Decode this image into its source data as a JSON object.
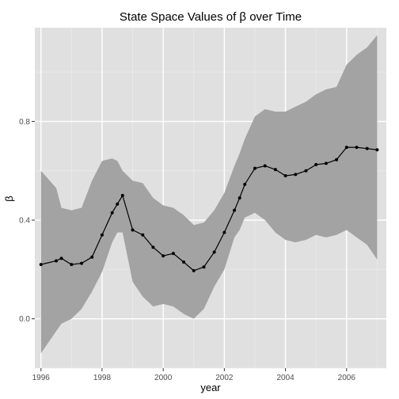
{
  "chart_data": {
    "type": "line",
    "title": "State Space Values of β over Time",
    "xlabel": "year",
    "ylabel": "β",
    "xlim": [
      1995.8,
      2007.3
    ],
    "ylim": [
      -0.2,
      1.18
    ],
    "x_ticks": [
      1996,
      1998,
      2000,
      2002,
      2004,
      2006
    ],
    "x_tick_labels": [
      "1996",
      "1998",
      "2000",
      "2002",
      "2004",
      "2006"
    ],
    "y_ticks": [
      0.0,
      0.4,
      0.8
    ],
    "y_tick_labels": [
      "0.0",
      "0.4",
      "0.8"
    ],
    "grid": true,
    "colors": {
      "panel": "#e0e0e0",
      "grid_major": "#ffffff",
      "grid_minor": "#ebebeb",
      "ribbon": "#a3a3a3",
      "line": "#000000"
    },
    "series": [
      {
        "x": [
          1996.0,
          1996.5,
          1996.67,
          1997.0,
          1997.33,
          1997.67,
          1998.0,
          1998.33,
          1998.5,
          1998.67,
          1999.0,
          1999.33,
          1999.67,
          2000.0,
          2000.33,
          2000.67,
          2001.0,
          2001.33,
          2001.67,
          2002.0,
          2002.33,
          2002.5,
          2002.67,
          2003.0,
          2003.33,
          2003.67,
          2004.0,
          2004.33,
          2004.67,
          2005.0,
          2005.33,
          2005.67,
          2006.0,
          2006.33,
          2006.67,
          2007.0
        ],
        "values": [
          0.22,
          0.235,
          0.245,
          0.22,
          0.225,
          0.25,
          0.34,
          0.43,
          0.465,
          0.5,
          0.36,
          0.34,
          0.29,
          0.255,
          0.265,
          0.23,
          0.195,
          0.21,
          0.27,
          0.35,
          0.44,
          0.49,
          0.545,
          0.61,
          0.62,
          0.605,
          0.58,
          0.585,
          0.6,
          0.625,
          0.63,
          0.645,
          0.695,
          0.695,
          0.69,
          0.685
        ],
        "lower": [
          -0.14,
          -0.05,
          -0.02,
          0.0,
          0.04,
          0.11,
          0.19,
          0.31,
          0.35,
          0.35,
          0.15,
          0.09,
          0.05,
          0.06,
          0.05,
          0.02,
          0.0,
          0.04,
          0.13,
          0.2,
          0.33,
          0.36,
          0.41,
          0.43,
          0.4,
          0.35,
          0.32,
          0.31,
          0.32,
          0.34,
          0.33,
          0.34,
          0.36,
          0.33,
          0.3,
          0.24
        ],
        "upper": [
          0.6,
          0.53,
          0.45,
          0.44,
          0.45,
          0.56,
          0.64,
          0.65,
          0.64,
          0.6,
          0.56,
          0.55,
          0.49,
          0.46,
          0.45,
          0.42,
          0.38,
          0.39,
          0.44,
          0.51,
          0.62,
          0.67,
          0.73,
          0.82,
          0.85,
          0.84,
          0.84,
          0.86,
          0.88,
          0.91,
          0.93,
          0.94,
          1.03,
          1.07,
          1.1,
          1.15
        ]
      }
    ]
  }
}
